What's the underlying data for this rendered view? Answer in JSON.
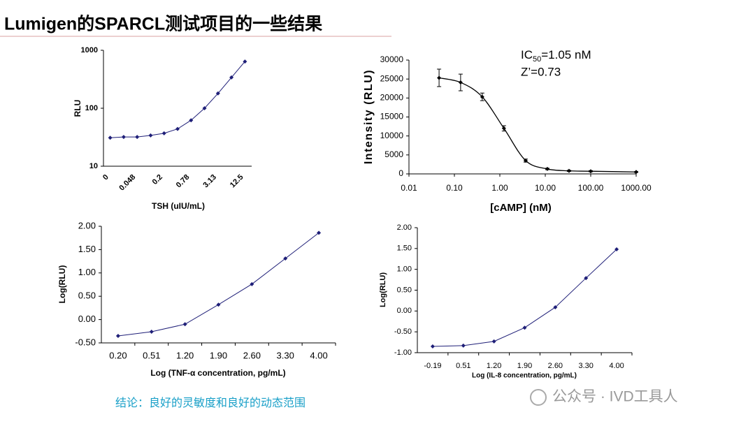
{
  "header": {
    "title": "Lumigen的SPARCL测试项目的一些结果"
  },
  "chart_data": [
    {
      "type": "line",
      "x_label": "TSH (uIU/mL)",
      "y_label": "RLU",
      "categories": [
        "0",
        null,
        "0.048",
        null,
        "0.2",
        null,
        "0.78",
        null,
        "3.13",
        null,
        "12.5"
      ],
      "values": [
        31,
        32,
        32,
        34,
        37,
        44,
        62,
        100,
        180,
        340,
        640
      ],
      "color": "#1f1f78",
      "y_log": true,
      "ylim": [
        10,
        1000
      ],
      "yticks": [
        10,
        100,
        1000
      ]
    },
    {
      "type": "scatter",
      "x_label": "[cAMP] (nM)",
      "y_label": "Intensity (RLU)",
      "annotations": {
        "ic50": {
          "prefix": "IC",
          "sub": "50",
          "rest": "=1.05 nM"
        },
        "z": "Z’=0.73"
      },
      "x": [
        0.046,
        0.137,
        0.41,
        1.23,
        3.7,
        11.1,
        33.3,
        100,
        1000
      ],
      "values": [
        25300,
        24100,
        20300,
        12000,
        3500,
        1300,
        800,
        700,
        500
      ],
      "errors": [
        2300,
        2200,
        1000,
        700,
        400,
        200,
        150,
        150,
        100
      ],
      "color": "#000000",
      "x_log": true,
      "xlim": [
        0.01,
        1000
      ],
      "xticks": [
        0.01,
        {
          "value": 0.1,
          "label": "0.10"
        },
        {
          "value": 1,
          "label": "1.00"
        },
        {
          "value": 10,
          "label": "10.00"
        },
        {
          "value": 100,
          "label": "100.00"
        },
        {
          "value": 1000,
          "label": "1000.00"
        }
      ],
      "ylim": [
        0,
        30000
      ],
      "yticks": [
        0,
        5000,
        10000,
        15000,
        20000,
        25000,
        30000
      ]
    },
    {
      "type": "line",
      "x_label": "Log (TNF-α concentration, pg/mL)",
      "y_label": "Log(RLU)",
      "categories": [
        "0.20",
        "0.51",
        "1.20",
        "1.90",
        "2.60",
        "3.30",
        "4.00"
      ],
      "values": [
        -0.35,
        -0.26,
        -0.1,
        0.32,
        0.76,
        1.31,
        1.86
      ],
      "color": "#1f1f78",
      "ylim": [
        -0.5,
        2
      ],
      "yticks": [
        {
          "value": -0.5,
          "label": "-0.50"
        },
        {
          "value": 0,
          "label": "0.00"
        },
        {
          "value": 0.5,
          "label": "0.50"
        },
        {
          "value": 1,
          "label": "1.00"
        },
        {
          "value": 1.5,
          "label": "1.50"
        },
        {
          "value": 2,
          "label": "2.00"
        }
      ]
    },
    {
      "type": "line",
      "x_label": "Log (IL-8 concentration, pg/mL)",
      "y_label": "Log(RLU)",
      "categories": [
        "-0.19",
        "0.51",
        "1.20",
        "1.90",
        "2.60",
        "3.30",
        "4.00"
      ],
      "values": [
        -0.85,
        -0.83,
        -0.73,
        -0.4,
        0.09,
        0.79,
        1.48
      ],
      "color": "#1f1f78",
      "ylim": [
        -1,
        2
      ],
      "yticks": [
        {
          "value": -1,
          "label": "-1.00"
        },
        {
          "value": -0.5,
          "label": "-0.50"
        },
        {
          "value": 0,
          "label": "0.00"
        },
        {
          "value": 0.5,
          "label": "0.50"
        },
        {
          "value": 1,
          "label": "1.00"
        },
        {
          "value": 1.5,
          "label": "1.50"
        },
        {
          "value": 2,
          "label": "2.00"
        }
      ]
    }
  ],
  "footer": {
    "conclusion": "结论：良好的灵敏度和良好的动态范围",
    "watermark": "公众号 · IVD工具人"
  }
}
